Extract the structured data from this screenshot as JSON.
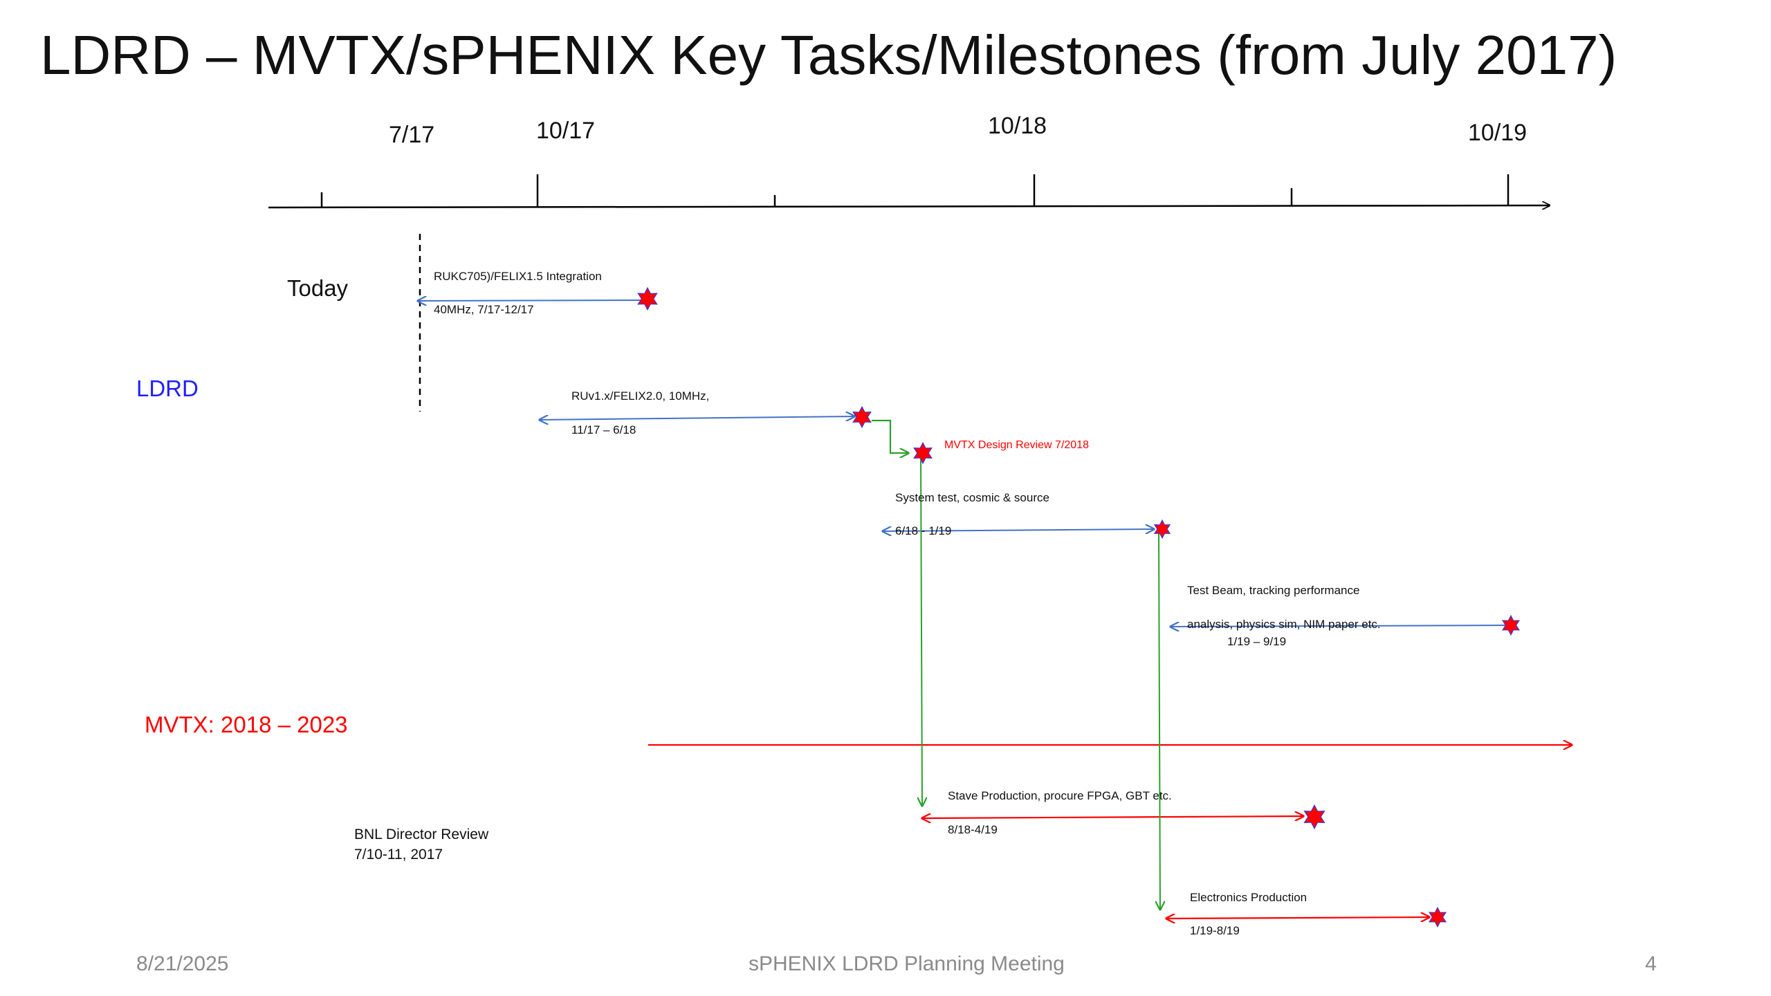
{
  "title": "LDRD – MVTX/sPHENIX Key Tasks/Milestones (from July 2017)",
  "timeline": {
    "tick_labels": [
      "7/17",
      "10/17",
      "10/18",
      "10/19"
    ]
  },
  "today_label": "Today",
  "groups": {
    "ldrd": {
      "label": "LDRD",
      "color": "#1f1fff"
    },
    "mvtx": {
      "label": "MVTX: 2018 – 2023",
      "color": "#ff0000"
    }
  },
  "tasks": [
    {
      "line1": "RUKC705)/FELIX1.5 Integration",
      "line2": "40MHz,  7/17-12/17"
    },
    {
      "line1": "RUv1.x/FELIX2.0, 10MHz,",
      "line2": "11/17 – 6/18"
    },
    {
      "line1": "System test, cosmic & source",
      "line2": "6/18 - 1/19"
    },
    {
      "line1": "Test Beam, tracking performance",
      "line2": "analysis, physics sim, NIM paper etc.",
      "line3": "1/19 – 9/19"
    },
    {
      "line1": "Stave Production, procure FPGA, GBT etc.",
      "line2": "8/18-4/19"
    },
    {
      "line1": "Electronics Production",
      "line2": "1/19-8/19"
    }
  ],
  "milestone": {
    "label": "MVTX Design Review 7/2018",
    "color": "#ff0000"
  },
  "review": {
    "line1": "BNL Director Review",
    "line2": "7/10-11, 2017"
  },
  "colors": {
    "ldrd_arrow": "#4472c4",
    "mvtx_arrow": "#ff0000",
    "dependency": "#2ca02c",
    "star": "#ff0000",
    "star_edge": "#1f3fff"
  },
  "footer": {
    "date": "8/21/2025",
    "center": "sPHENIX LDRD Planning Meeting",
    "page": "4"
  }
}
